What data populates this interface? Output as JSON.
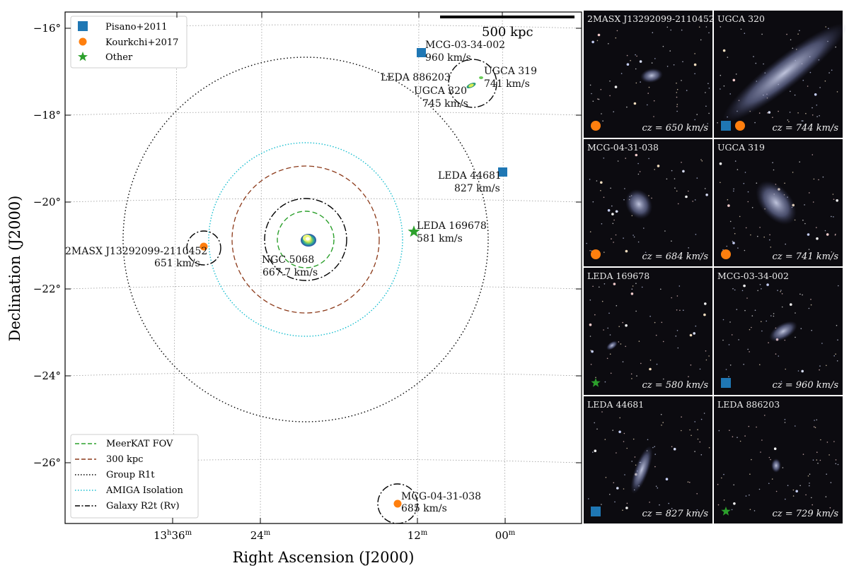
{
  "map": {
    "xlabel": "Right Ascension (J2000)",
    "ylabel": "Declination (J2000)",
    "scalebar_label": "500 kpc",
    "ra_ticks": [
      {
        "h": "13",
        "hsup": "h",
        "m": "36",
        "msup": "m"
      },
      {
        "h": "",
        "hsup": "",
        "m": "24",
        "msup": "m"
      },
      {
        "h": "",
        "hsup": "",
        "m": "12",
        "msup": "m"
      },
      {
        "h": "",
        "hsup": "",
        "m": "00",
        "msup": "m"
      }
    ],
    "dec_ticks": [
      "−16°",
      "−18°",
      "−20°",
      "−22°",
      "−24°",
      "−26°"
    ],
    "legend_sources": [
      {
        "label": "Pisano+2011",
        "marker": "square",
        "color": "#1f77b4"
      },
      {
        "label": "Kourkchi+2017",
        "marker": "circle",
        "color": "#ff7f0e"
      },
      {
        "label": "Other",
        "marker": "star",
        "color": "#2ca02c"
      }
    ],
    "legend_circles": [
      {
        "label": "MeerKAT FOV",
        "color": "#2ca02c",
        "style": "dashed"
      },
      {
        "label": "300 kpc",
        "color": "#8c3a1a",
        "style": "dashed"
      },
      {
        "label": "Group R1t",
        "color": "#000000",
        "style": "dotted"
      },
      {
        "label": "AMIGA Isolation",
        "color": "#17becf",
        "style": "dotted"
      },
      {
        "label": "Galaxy R2t (Rv)",
        "color": "#000000",
        "style": "dashdot"
      }
    ],
    "galaxies": [
      {
        "name": "NGC 5068",
        "vel": "667.7 km/s"
      },
      {
        "name": "MCG-03-34-002",
        "vel": "960 km/s"
      },
      {
        "name": "LEDA 886203",
        "vel": ""
      },
      {
        "name": "UGCA 319",
        "vel": "741 km/s"
      },
      {
        "name": "UGCA 320",
        "vel": "745 km/s"
      },
      {
        "name": "LEDA 44681",
        "vel": "827 km/s"
      },
      {
        "name": "LEDA 169678",
        "vel": "581 km/s"
      },
      {
        "name": "2MASX J13292099-2110452",
        "vel": "651 km/s"
      },
      {
        "name": "MCG-04-31-038",
        "vel": "685 km/s"
      }
    ]
  },
  "thumbnails": [
    {
      "title": "2MASX J13292099-2110452",
      "cz": "cz = 650 km/s",
      "markers": [
        "circle"
      ]
    },
    {
      "title": "UGCA 320",
      "cz": "cz = 744 km/s",
      "markers": [
        "square",
        "circle"
      ]
    },
    {
      "title": "MCG-04-31-038",
      "cz": "cz = 684 km/s",
      "markers": [
        "circle"
      ]
    },
    {
      "title": "UGCA 319",
      "cz": "cz = 741 km/s",
      "markers": [
        "circle"
      ]
    },
    {
      "title": "LEDA 169678",
      "cz": "cz = 580 km/s",
      "markers": [
        "star"
      ]
    },
    {
      "title": "MCG-03-34-002",
      "cz": "cz = 960 km/s",
      "markers": [
        "square"
      ]
    },
    {
      "title": "LEDA 44681",
      "cz": "cz = 827 km/s",
      "markers": [
        "square"
      ]
    },
    {
      "title": "LEDA 886203",
      "cz": "cz = 729 km/s",
      "markers": [
        "star"
      ]
    }
  ],
  "colors": {
    "square": "#1f77b4",
    "circle": "#ff7f0e",
    "star": "#2ca02c",
    "panel_bg": "#0c0b10"
  }
}
